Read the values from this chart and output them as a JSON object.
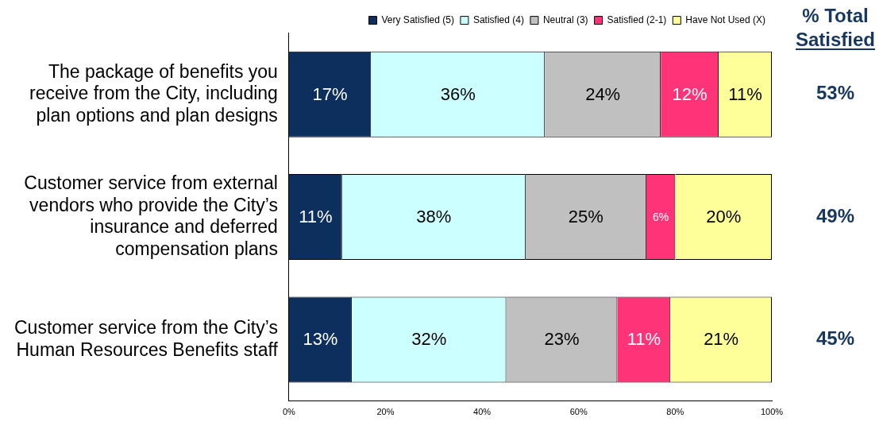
{
  "chart_data": {
    "type": "bar",
    "orientation": "horizontal",
    "stacked": true,
    "categories": [
      "The package of benefits you receive from the City, including plan options and plan designs",
      "Customer service from external vendors who provide the City’s insurance and deferred compensation plans",
      "Customer service from the City’s Human Resources Benefits staff"
    ],
    "series": [
      {
        "name": "Very Satisfied (5)",
        "color": "#0d2f5e",
        "values": [
          17,
          11,
          13
        ],
        "value_labels": [
          "17%",
          "11%",
          "13%"
        ]
      },
      {
        "name": "Satisfied (4)",
        "color": "#ccffff",
        "values": [
          36,
          38,
          32
        ],
        "value_labels": [
          "36%",
          "38%",
          "32%"
        ]
      },
      {
        "name": "Neutral (3)",
        "color": "#c0c0c0",
        "values": [
          24,
          25,
          23
        ],
        "value_labels": [
          "24%",
          "25%",
          "23%"
        ]
      },
      {
        "name": "Satisfied (2-1)",
        "color": "#ff3377",
        "values": [
          12,
          6,
          11
        ],
        "value_labels": [
          "12%",
          "6%",
          "11%"
        ]
      },
      {
        "name": "Have Not Used (X)",
        "color": "#ffff99",
        "values": [
          11,
          20,
          21
        ],
        "value_labels": [
          "11%",
          "20%",
          "21%"
        ]
      }
    ],
    "xlim": [
      0,
      100
    ],
    "xticks": [
      {
        "value": 0,
        "label": "0%"
      },
      {
        "value": 20,
        "label": "20%"
      },
      {
        "value": 40,
        "label": "40%"
      },
      {
        "value": 60,
        "label": "60%"
      },
      {
        "value": 80,
        "label": "80%"
      },
      {
        "value": 100,
        "label": "100%"
      }
    ],
    "grid": false,
    "legend": "top right",
    "annotations": [
      "% Total Satisfied",
      "53%",
      "49%",
      "45%"
    ]
  }
}
